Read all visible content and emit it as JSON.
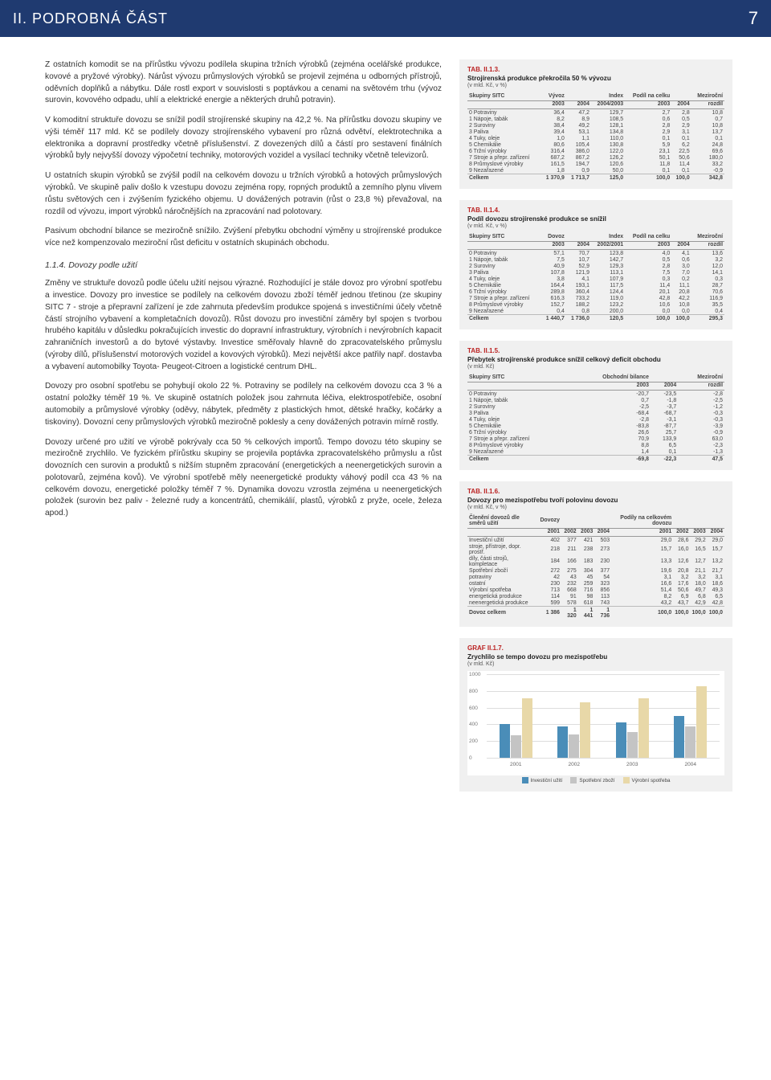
{
  "header": {
    "title": "II. PODROBNÁ ČÁST",
    "page": "7"
  },
  "body": {
    "p1": "Z ostatních komodit se na přírůstku vývozu podílela skupina tržních výrobků (zejména ocelářské produkce, kovové a pryžové výrobky). Nárůst vývozu průmyslových výrobků se projevil zejména u odborných přístrojů, oděvních doplňků a nábytku. Dále rostl export v souvislosti s poptávkou a cenami na světovém trhu (vývoz surovin, kovového odpadu, uhlí a elektrické energie a některých druhů potravin).",
    "p2": "V komoditní struktuře dovozu se snížil podíl strojírenské skupiny na 42,2 %. Na přírůstku dovozu skupiny ve výši téměř 117 mld. Kč se podílely dovozy strojírenského vybavení pro různá odvětví, elektrotechnika a elektronika a dopravní prostředky včetně příslušenství. Z dovezených dílů a částí pro sestavení finálních výrobků byly nejvyšší dovozy výpočetní techniky, motorových vozidel a vysílací techniky včetně televizorů.",
    "p3": "U ostatních skupin výrobků se zvýšil podíl na celkovém dovozu u tržních výrobků a hotových průmyslových výrobků. Ve skupině paliv došlo k vzestupu dovozu zejména ropy, ropných produktů a zemního plynu vlivem růstu světových cen i zvýšením fyzického objemu. U dovážených potravin (růst o 23,8 %) převažoval, na rozdíl od vývozu, import výrobků náročnějších na zpracování nad polotovary.",
    "p4": "Pasivum obchodní bilance se meziročně snížilo. Zvýšení přebytku obchodní výměny u strojírenské produkce více než kompenzovalo meziroční růst deficitu v ostatních skupinách obchodu.",
    "h1": "1.1.4. Dovozy podle užití",
    "p5": "Změny ve struktuře dovozů podle účelu užití nejsou výrazné. Rozhodující je stále dovoz pro výrobní spotřebu a investice. Dovozy pro investice se podílely na celkovém dovozu zboží téměř jednou třetinou (ze skupiny SITC 7 - stroje a přepravní zařízení je zde zahrnuta především produkce spojená s investičními účely včetně částí strojního vybavení a kompletačních dovozů). Růst dovozu pro investiční záměry byl spojen s tvorbou hrubého kapitálu v důsledku pokračujících investic do dopravní infrastruktury, výrobních i nevýrobních kapacit zahraničních investorů a do bytové výstavby. Investice směřovaly hlavně do zpracovatelského průmyslu (výroby dílů, příslušenství motorových vozidel a kovových výrobků). Mezi největší akce patřily např. dostavba a vybavení automobilky Toyota- Peugeot-Citroen a logistické centrum DHL.",
    "p6": "Dovozy pro osobní spotřebu se pohybují okolo 22 %. Potraviny se podílely na celkovém dovozu cca 3 % a ostatní položky téměř 19 %. Ve skupině ostatních položek jsou zahrnuta léčiva, elektrospotřebiče, osobní automobily a průmyslové výrobky (oděvy, nábytek, předměty z plastických hmot, dětské hračky, kočárky a tiskoviny). Dovozní ceny průmyslových výrobků meziročně poklesly a ceny dovážených potravin mírně rostly.",
    "p7": "Dovozy určené pro užití ve výrobě pokrývaly cca 50 % celkových importů. Tempo dovozu této skupiny se meziročně zrychlilo. Ve fyzickém přírůstku skupiny se projevila poptávka zpracovatelského průmyslu a růst dovozních cen surovin a produktů s nižším stupněm zpracování (energetických a neenergetických surovin a polotovarů, zejména kovů). Ve výrobní spotřebě měly neenergetické produkty váhový podíl cca 43 % na celkovém dovozu, energetické položky téměř 7 %. Dynamika dovozu vzrostla zejména u neenergetických položek (surovin bez paliv - železné rudy a koncentrátů, chemikálií, plastů, výrobků z pryže, ocele, železa apod.)"
  },
  "tables": {
    "t3": {
      "label": "TAB. II.1.3.",
      "title": "Strojírenská produkce překročila 50 % vývozu",
      "unit": "(v mld. Kč, v %)",
      "head_group": [
        "Skupiny SITC",
        "Vývoz",
        "Vývoz",
        "Index",
        "Podíl na celku",
        "Podíl na celku",
        "Meziroční"
      ],
      "head": [
        "",
        "2003",
        "2004",
        "2004/2003",
        "2003",
        "2004",
        "rozdíl"
      ],
      "rows": [
        [
          "0 Potraviny",
          "36,4",
          "47,2",
          "129,7",
          "2,7",
          "2,8",
          "10,8"
        ],
        [
          "1 Nápoje, tabák",
          "8,2",
          "8,9",
          "108,5",
          "0,6",
          "0,5",
          "0,7"
        ],
        [
          "2 Suroviny",
          "38,4",
          "49,2",
          "128,1",
          "2,8",
          "2,9",
          "10,8"
        ],
        [
          "3 Paliva",
          "39,4",
          "53,1",
          "134,8",
          "2,9",
          "3,1",
          "13,7"
        ],
        [
          "4 Tuky, oleje",
          "1,0",
          "1,1",
          "110,0",
          "0,1",
          "0,1",
          "0,1"
        ],
        [
          "5 Chemikálie",
          "80,6",
          "105,4",
          "130,8",
          "5,9",
          "6,2",
          "24,8"
        ],
        [
          "6 Tržní výrobky",
          "316,4",
          "386,0",
          "122,0",
          "23,1",
          "22,5",
          "69,6"
        ],
        [
          "7 Stroje a přepr. zařízení",
          "687,2",
          "867,2",
          "126,2",
          "50,1",
          "50,6",
          "180,0"
        ],
        [
          "8 Průmyslové výrobky",
          "161,5",
          "194,7",
          "120,6",
          "11,8",
          "11,4",
          "33,2"
        ],
        [
          "9 Nezařazené",
          "1,8",
          "0,9",
          "50,0",
          "0,1",
          "0,1",
          "-0,9"
        ]
      ],
      "total": [
        "Celkem",
        "1 370,9",
        "1 713,7",
        "125,0",
        "100,0",
        "100,0",
        "342,8"
      ]
    },
    "t4": {
      "label": "TAB. II.1.4.",
      "title": "Podíl dovozu strojírenské produkce se snížil",
      "unit": "(v mld. Kč, v %)",
      "head": [
        "",
        "2003",
        "2004",
        "2002/2001",
        "2003",
        "2004",
        "rozdíl"
      ],
      "head_group": [
        "Skupiny SITC",
        "Dovoz",
        "Dovoz",
        "Index",
        "Podíl na celku",
        "Podíl na celku",
        "Meziroční"
      ],
      "rows": [
        [
          "0 Potraviny",
          "57,1",
          "70,7",
          "123,8",
          "4,0",
          "4,1",
          "13,6"
        ],
        [
          "1 Nápoje, tabák",
          "7,5",
          "10,7",
          "142,7",
          "0,5",
          "0,6",
          "3,2"
        ],
        [
          "2 Suroviny",
          "40,9",
          "52,9",
          "129,3",
          "2,8",
          "3,0",
          "12,0"
        ],
        [
          "3 Paliva",
          "107,8",
          "121,9",
          "113,1",
          "7,5",
          "7,0",
          "14,1"
        ],
        [
          "4 Tuky, oleje",
          "3,8",
          "4,1",
          "107,9",
          "0,3",
          "0,2",
          "0,3"
        ],
        [
          "5 Chemikálie",
          "164,4",
          "193,1",
          "117,5",
          "11,4",
          "11,1",
          "28,7"
        ],
        [
          "6 Tržní výrobky",
          "289,8",
          "360,4",
          "124,4",
          "20,1",
          "20,8",
          "70,6"
        ],
        [
          "7 Stroje a přepr. zařízení",
          "616,3",
          "733,2",
          "119,0",
          "42,8",
          "42,2",
          "116,9"
        ],
        [
          "8 Průmyslové výrobky",
          "152,7",
          "188,2",
          "123,2",
          "10,6",
          "10,8",
          "35,5"
        ],
        [
          "9 Nezařazené",
          "0,4",
          "0,8",
          "200,0",
          "0,0",
          "0,0",
          "0,4"
        ]
      ],
      "total": [
        "Celkem",
        "1 440,7",
        "1 736,0",
        "120,5",
        "100,0",
        "100,0",
        "295,3"
      ]
    },
    "t5": {
      "label": "TAB. II.1.5.",
      "title": "Přebytek strojírenské produkce snížil celkový deficit obchodu",
      "unit": "(v mld. Kč)",
      "head_group": [
        "Skupiny SITC",
        "Obchodní bilance",
        "Obchodní bilance",
        "Meziroční"
      ],
      "head": [
        "",
        "2003",
        "2004",
        "rozdíl"
      ],
      "rows": [
        [
          "0 Potraviny",
          "-20,7",
          "-23,5",
          "-2,8"
        ],
        [
          "1 Nápoje, tabák",
          "0,7",
          "-1,8",
          "-2,5"
        ],
        [
          "2 Suroviny",
          "-2,5",
          "-3,7",
          "-1,2"
        ],
        [
          "3 Paliva",
          "-68,4",
          "-68,7",
          "-0,3"
        ],
        [
          "4 Tuky, oleje",
          "-2,8",
          "-3,1",
          "-0,3"
        ],
        [
          "5 Chemikálie",
          "-83,8",
          "-87,7",
          "-3,9"
        ],
        [
          "6 Tržní výrobky",
          "26,6",
          "25,7",
          "-0,9"
        ],
        [
          "7 Stroje a přepr. zařízení",
          "70,9",
          "133,9",
          "63,0"
        ],
        [
          "8 Průmyslové výrobky",
          "8,8",
          "6,5",
          "-2,3"
        ],
        [
          "9 Nezařazené",
          "1,4",
          "0,1",
          "-1,3"
        ]
      ],
      "total": [
        "Celkem",
        "-69,8",
        "-22,3",
        "47,5"
      ]
    },
    "t6": {
      "label": "TAB. II.1.6.",
      "title": "Dovozy pro mezispotřebu tvoří polovinu dovozu",
      "unit": "(v mld. Kč, v %)",
      "head_group": [
        "Členění dovozů dle směrů užití",
        "Dovozy",
        "",
        "",
        "",
        "Podíly na celkovém dovozu",
        "",
        "",
        ""
      ],
      "head": [
        "",
        "2001",
        "2002",
        "2003",
        "2004",
        "2001",
        "2002",
        "2003",
        "2004"
      ],
      "rows": [
        [
          "Investiční užití",
          "402",
          "377",
          "421",
          "503",
          "29,0",
          "28,6",
          "29,2",
          "29,0"
        ],
        [
          "  stroje, přístroje, dopr. prostř.",
          "218",
          "211",
          "238",
          "273",
          "15,7",
          "16,0",
          "16,5",
          "15,7"
        ],
        [
          "  díly, části strojů, kompletace",
          "184",
          "166",
          "183",
          "230",
          "13,3",
          "12,6",
          "12,7",
          "13,2"
        ],
        [
          "Spotřební zboží",
          "272",
          "275",
          "304",
          "377",
          "19,6",
          "20,8",
          "21,1",
          "21,7"
        ],
        [
          "  potraviny",
          "42",
          "43",
          "45",
          "54",
          "3,1",
          "3,2",
          "3,2",
          "3,1"
        ],
        [
          "  ostatní",
          "230",
          "232",
          "259",
          "323",
          "16,6",
          "17,6",
          "18,0",
          "18,6"
        ],
        [
          "Výrobní spotřeba",
          "713",
          "668",
          "716",
          "856",
          "51,4",
          "50,6",
          "49,7",
          "49,3"
        ],
        [
          "  energetická produkce",
          "114",
          "91",
          "98",
          "113",
          "8,2",
          "6,9",
          "6,8",
          "6,5"
        ],
        [
          "  neenergetická produkce",
          "599",
          "578",
          "618",
          "743",
          "43,2",
          "43,7",
          "42,9",
          "42,8"
        ]
      ],
      "total": [
        "Dovoz celkem",
        "1 386",
        "1 320",
        "1 441",
        "1 736",
        "100,0",
        "100,0",
        "100,0",
        "100,0"
      ]
    }
  },
  "chart": {
    "label": "GRAF II.1.7.",
    "title": "Zrychlilo se tempo dovozu pro mezispotřebu",
    "unit": "(v mld. Kč)",
    "type": "bar",
    "ylim": [
      0,
      1000
    ],
    "ytick_step": 200,
    "categories": [
      "2001",
      "2002",
      "2003",
      "2004"
    ],
    "series": [
      {
        "name": "Investiční užití",
        "color": "#4a8db8",
        "values": [
          402,
          377,
          421,
          503
        ]
      },
      {
        "name": "Spotřební zboží",
        "color": "#c4c4c4",
        "values": [
          272,
          275,
          304,
          377
        ]
      },
      {
        "name": "Výrobní spotřeba",
        "color": "#e8d8a8",
        "values": [
          713,
          668,
          716,
          856
        ]
      }
    ],
    "background_color": "#ffffff",
    "grid_color": "#dddddd"
  }
}
